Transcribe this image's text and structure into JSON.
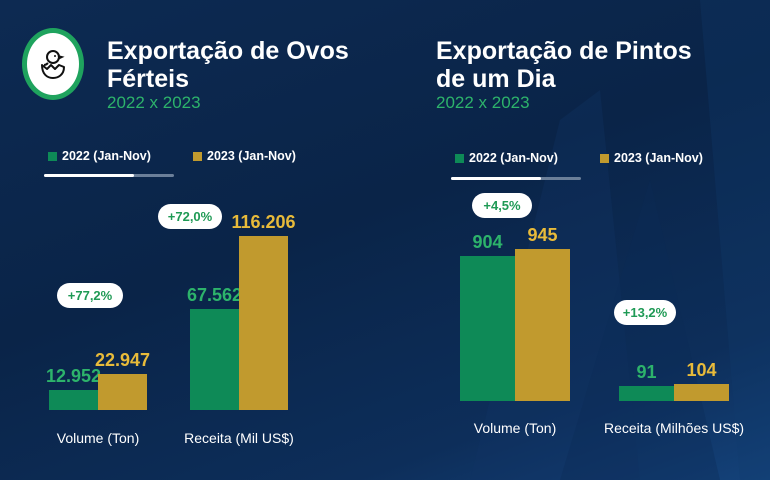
{
  "colors": {
    "y2022": "#0e8a57",
    "y2023": "#c19a2e",
    "accent_green": "#2db36b"
  },
  "legend": {
    "y2022": "2022 (Jan-Nov)",
    "y2023": "2023 (Jan-Nov)"
  },
  "left": {
    "title_line1": "Exportação de Ovos",
    "title_line2": "Férteis",
    "subtitle": "2022 x 2023",
    "icon": "hatching-chick-icon"
  },
  "right": {
    "title_line1": "Exportação de Pintos",
    "title_line2": "de um Dia",
    "subtitle": "2022 x 2023"
  },
  "chart_data": [
    {
      "type": "bar",
      "title": "Exportação de Ovos Férteis 2022 x 2023",
      "categories": [
        "Volume (Ton)",
        "Receita (Mil US$)"
      ],
      "series": [
        {
          "name": "2022 (Jan-Nov)",
          "values": [
            12952,
            67562
          ],
          "labels": [
            "12.952",
            "67.562"
          ]
        },
        {
          "name": "2023 (Jan-Nov)",
          "values": [
            22947,
            116206
          ],
          "labels": [
            "22.947",
            "116.206"
          ]
        }
      ],
      "changes": [
        "+77,2%",
        "+72,0%"
      ]
    },
    {
      "type": "bar",
      "title": "Exportação de Pintos de um Dia 2022 x 2023",
      "categories": [
        "Volume (Ton)",
        "Receita (Milhões US$)"
      ],
      "series": [
        {
          "name": "2022 (Jan-Nov)",
          "values": [
            904,
            91
          ],
          "labels": [
            "904",
            "91"
          ]
        },
        {
          "name": "2023 (Jan-Nov)",
          "values": [
            945,
            104
          ],
          "labels": [
            "945",
            "104"
          ]
        }
      ],
      "changes": [
        "+4,5%",
        "+13,2%"
      ]
    }
  ]
}
